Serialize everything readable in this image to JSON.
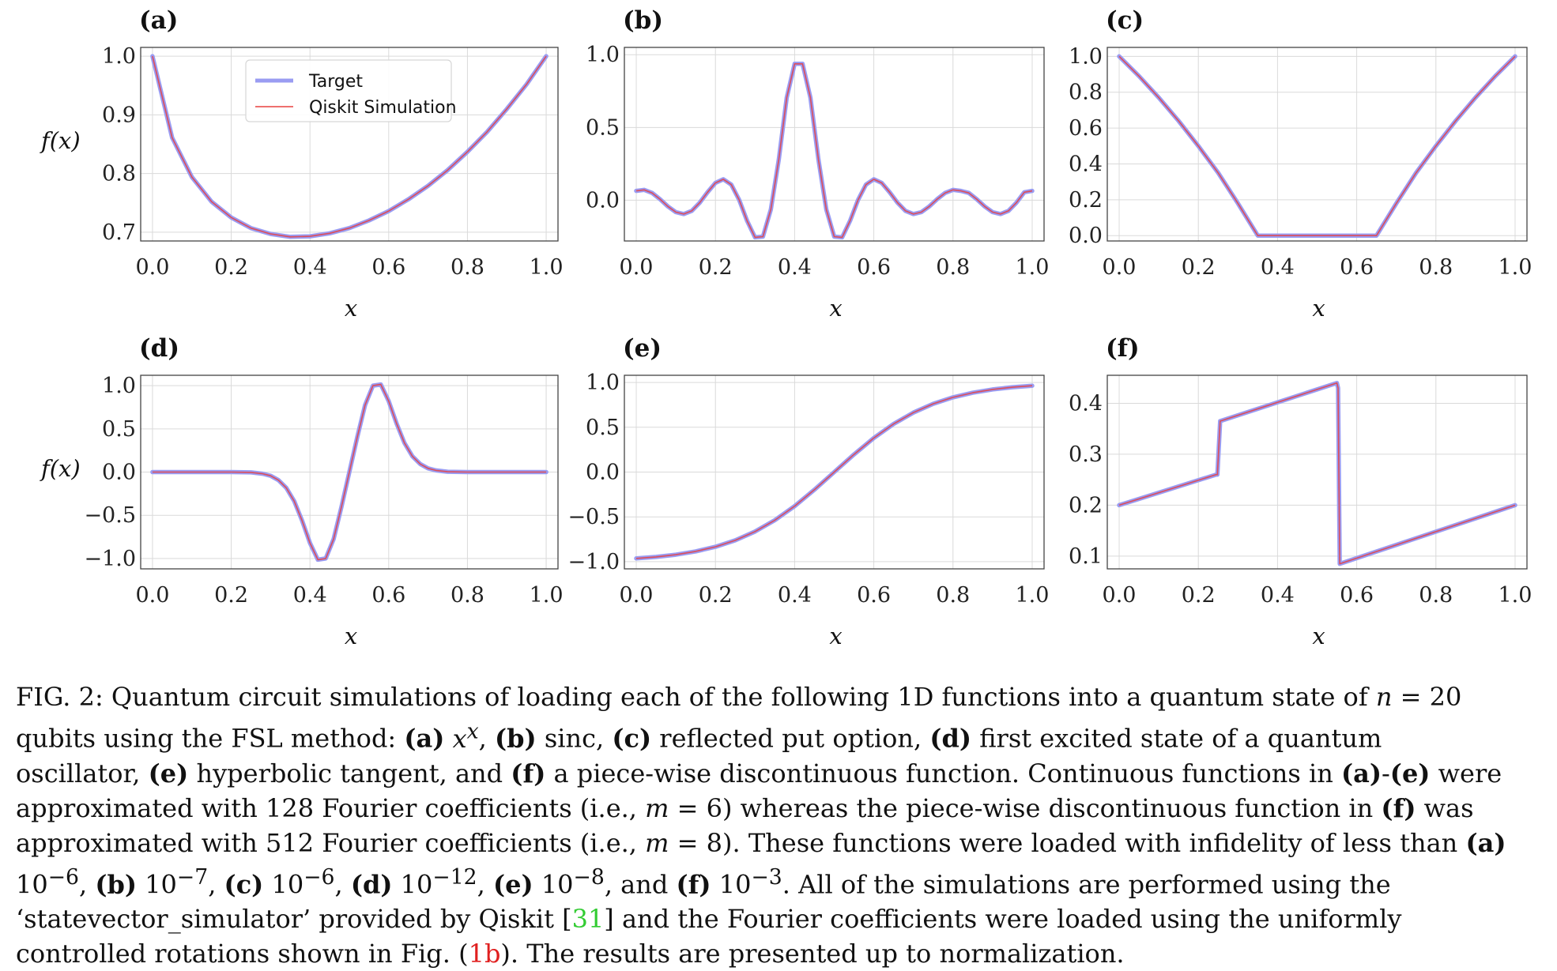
{
  "colors": {
    "target": "#9a9cf2",
    "simulation": "#e8403f",
    "grid": "#dadada",
    "frame": "#444444"
  },
  "chart_data": [
    {
      "panel": "(a)",
      "type": "line",
      "ylabel": "f(x)",
      "xlabel": "x",
      "xlim": [
        -0.03,
        1.03
      ],
      "ylim": [
        0.685,
        1.015
      ],
      "xticks": [
        "0.0",
        "0.2",
        "0.4",
        "0.6",
        "0.8",
        "1.0"
      ],
      "yticks": [
        0.7,
        0.8,
        0.9,
        1.0
      ],
      "ytick_labels": [
        "0.7",
        "0.8",
        "0.9",
        "1.0"
      ],
      "grid": true,
      "legend": {
        "placement": "top-center",
        "entries": [
          "Target",
          "Qiskit Simulation"
        ]
      },
      "series": [
        {
          "name": "Target",
          "x": [
            0,
            0.05,
            0.1,
            0.15,
            0.2,
            0.25,
            0.3,
            0.35,
            0.4,
            0.45,
            0.5,
            0.55,
            0.6,
            0.65,
            0.7,
            0.75,
            0.8,
            0.85,
            0.9,
            0.95,
            1.0
          ],
          "y": [
            1.0,
            0.861,
            0.794,
            0.752,
            0.725,
            0.707,
            0.697,
            0.692,
            0.693,
            0.698,
            0.707,
            0.72,
            0.736,
            0.756,
            0.779,
            0.806,
            0.837,
            0.871,
            0.91,
            0.952,
            1.0
          ]
        }
      ]
    },
    {
      "panel": "(b)",
      "type": "line",
      "xlabel": "x",
      "xlim": [
        -0.03,
        1.03
      ],
      "ylim": [
        -0.28,
        1.05
      ],
      "xticks": [
        "0.0",
        "0.2",
        "0.4",
        "0.6",
        "0.8",
        "1.0"
      ],
      "yticks": [
        0.0,
        0.5,
        1.0
      ],
      "ytick_labels": [
        "0.0",
        "0.5",
        "1.0"
      ],
      "grid": true,
      "series": [
        {
          "name": "Target",
          "x": [
            0,
            0.02,
            0.04,
            0.06,
            0.08,
            0.1,
            0.12,
            0.14,
            0.16,
            0.18,
            0.2,
            0.22,
            0.24,
            0.26,
            0.28,
            0.3,
            0.32,
            0.34,
            0.36,
            0.38,
            0.4,
            0.42,
            0.44,
            0.46,
            0.48,
            0.5,
            0.52,
            0.54,
            0.56,
            0.58,
            0.6,
            0.62,
            0.64,
            0.66,
            0.68,
            0.7,
            0.72,
            0.74,
            0.76,
            0.78,
            0.8,
            0.82,
            0.84,
            0.86,
            0.88,
            0.9,
            0.92,
            0.94,
            0.96,
            0.98,
            1.0
          ],
          "y": [
            0.064,
            0.071,
            0.05,
            0.007,
            -0.043,
            -0.082,
            -0.095,
            -0.073,
            -0.018,
            0.055,
            0.119,
            0.144,
            0.107,
            0.002,
            -0.142,
            -0.255,
            -0.25,
            -0.064,
            0.281,
            0.705,
            0.937,
            0.937,
            0.705,
            0.281,
            -0.064,
            -0.25,
            -0.255,
            -0.142,
            0.002,
            0.107,
            0.144,
            0.119,
            0.055,
            -0.018,
            -0.073,
            -0.095,
            -0.082,
            -0.043,
            0.007,
            0.05,
            0.071,
            0.064,
            0.05,
            0.007,
            -0.043,
            -0.082,
            -0.095,
            -0.073,
            -0.018,
            0.055,
            0.064
          ]
        }
      ]
    },
    {
      "panel": "(c)",
      "type": "line",
      "xlabel": "x",
      "xlim": [
        -0.03,
        1.03
      ],
      "ylim": [
        -0.03,
        1.05
      ],
      "xticks": [
        "0.0",
        "0.2",
        "0.4",
        "0.6",
        "0.8",
        "1.0"
      ],
      "yticks": [
        0.0,
        0.2,
        0.4,
        0.6,
        0.8,
        1.0
      ],
      "ytick_labels": [
        "0.0",
        "0.2",
        "0.4",
        "0.6",
        "0.8",
        "1.0"
      ],
      "grid": true,
      "series": [
        {
          "name": "Target",
          "x": [
            0,
            0.05,
            0.1,
            0.15,
            0.2,
            0.25,
            0.3,
            0.35,
            0.4,
            0.5,
            0.6,
            0.65,
            0.7,
            0.75,
            0.8,
            0.85,
            0.9,
            0.95,
            1.0
          ],
          "y": [
            1.0,
            0.89,
            0.77,
            0.64,
            0.5,
            0.35,
            0.18,
            0.0,
            0.0,
            0.0,
            0.0,
            0.0,
            0.18,
            0.35,
            0.5,
            0.64,
            0.77,
            0.89,
            1.0
          ]
        }
      ]
    },
    {
      "panel": "(d)",
      "type": "line",
      "ylabel": "f(x)",
      "xlabel": "x",
      "xlim": [
        -0.03,
        1.03
      ],
      "ylim": [
        -1.12,
        1.12
      ],
      "xticks": [
        "0.0",
        "0.2",
        "0.4",
        "0.6",
        "0.8",
        "1.0"
      ],
      "yticks": [
        -1.0,
        -0.5,
        0.0,
        0.5,
        1.0
      ],
      "ytick_labels": [
        "−1.0",
        "−0.5",
        "0.0",
        "0.5",
        "1.0"
      ],
      "grid": true,
      "series": [
        {
          "name": "Target",
          "x": [
            0,
            0.05,
            0.1,
            0.15,
            0.2,
            0.25,
            0.28,
            0.3,
            0.32,
            0.34,
            0.36,
            0.38,
            0.4,
            0.42,
            0.44,
            0.46,
            0.48,
            0.5,
            0.52,
            0.54,
            0.56,
            0.58,
            0.6,
            0.62,
            0.64,
            0.66,
            0.68,
            0.7,
            0.72,
            0.75,
            0.8,
            0.85,
            0.9,
            0.95,
            1.0
          ],
          "y": [
            0,
            0,
            0,
            0,
            0,
            -0.004,
            -0.019,
            -0.043,
            -0.093,
            -0.184,
            -0.337,
            -0.561,
            -0.821,
            -1.014,
            -1.0,
            -0.775,
            -0.403,
            0,
            0.403,
            0.775,
            1.0,
            1.014,
            0.821,
            0.561,
            0.337,
            0.184,
            0.093,
            0.043,
            0.019,
            0.004,
            0,
            0,
            0,
            0,
            0
          ]
        }
      ]
    },
    {
      "panel": "(e)",
      "type": "line",
      "xlabel": "x",
      "xlim": [
        -0.03,
        1.03
      ],
      "ylim": [
        -1.08,
        1.08
      ],
      "xticks": [
        "0.0",
        "0.2",
        "0.4",
        "0.6",
        "0.8",
        "1.0"
      ],
      "yticks": [
        -1.0,
        -0.5,
        0.0,
        0.5,
        1.0
      ],
      "ytick_labels": [
        "−1.0",
        "−0.5",
        "0.0",
        "0.5",
        "1.0"
      ],
      "grid": true,
      "series": [
        {
          "name": "Target",
          "x": [
            0,
            0.05,
            0.1,
            0.15,
            0.2,
            0.25,
            0.3,
            0.35,
            0.4,
            0.45,
            0.5,
            0.55,
            0.6,
            0.65,
            0.7,
            0.75,
            0.8,
            0.85,
            0.9,
            0.95,
            1.0
          ],
          "y": [
            -0.964,
            -0.947,
            -0.922,
            -0.885,
            -0.834,
            -0.762,
            -0.664,
            -0.537,
            -0.38,
            -0.197,
            0,
            0.197,
            0.38,
            0.537,
            0.664,
            0.762,
            0.834,
            0.885,
            0.922,
            0.947,
            0.964
          ]
        }
      ]
    },
    {
      "panel": "(f)",
      "type": "line",
      "xlabel": "x",
      "xlim": [
        -0.03,
        1.03
      ],
      "ylim": [
        0.075,
        0.455
      ],
      "xticks": [
        "0.0",
        "0.2",
        "0.4",
        "0.6",
        "0.8",
        "1.0"
      ],
      "yticks": [
        0.1,
        0.2,
        0.3,
        0.4
      ],
      "ytick_labels": [
        "0.1",
        "0.2",
        "0.3",
        "0.4"
      ],
      "grid": true,
      "series": [
        {
          "name": "Target",
          "x": [
            0,
            0.245,
            0.248,
            0.255,
            0.55,
            0.553,
            0.557,
            1.0
          ],
          "y": [
            0.2,
            0.26,
            0.26,
            0.365,
            0.44,
            0.43,
            0.085,
            0.2
          ]
        }
      ]
    }
  ],
  "caption": {
    "lines": [
      "FIG. 2: Quantum circuit simulations of loading each of the following 1D functions into a quantum state of <i>n</i> = 20",
      "qubits using the FSL method: <b>(a)</b> <i>x<sup>x</sup></i>, <b>(b)</b> sinc, <b>(c)</b> reflected put option, <b>(d)</b> first excited state of a quantum",
      "oscillator, <b>(e)</b> hyperbolic tangent, and <b>(f)</b> a piece-wise discontinuous function. Continuous functions in <b>(a)</b>-<b>(e)</b> were",
      "approximated with 128 Fourier coefficients (i.e., <i>m</i> = 6) whereas the piece-wise discontinuous function in <b>(f)</b> was",
      "approximated with 512 Fourier coefficients (i.e., <i>m</i> = 8). These functions were loaded with infidelity of less than <b>(a)</b>",
      "10<sup>−6</sup>, <b>(b)</b> 10<sup>−7</sup>, <b>(c)</b> 10<sup>−6</sup>, <b>(d)</b> 10<sup>−12</sup>, <b>(e)</b> 10<sup>−8</sup>, and <b>(f)</b> 10<sup>−3</sup>. All of the simulations are performed using the",
      "‘statevector_simulator’ provided by Qiskit [<span class=\"cite-green\">31</span>] and the Fourier coefficients were loaded using the uniformly",
      "controlled rotations shown in Fig. (<span class=\"cite-red\">1b</span>). The results are presented up to normalization."
    ]
  }
}
